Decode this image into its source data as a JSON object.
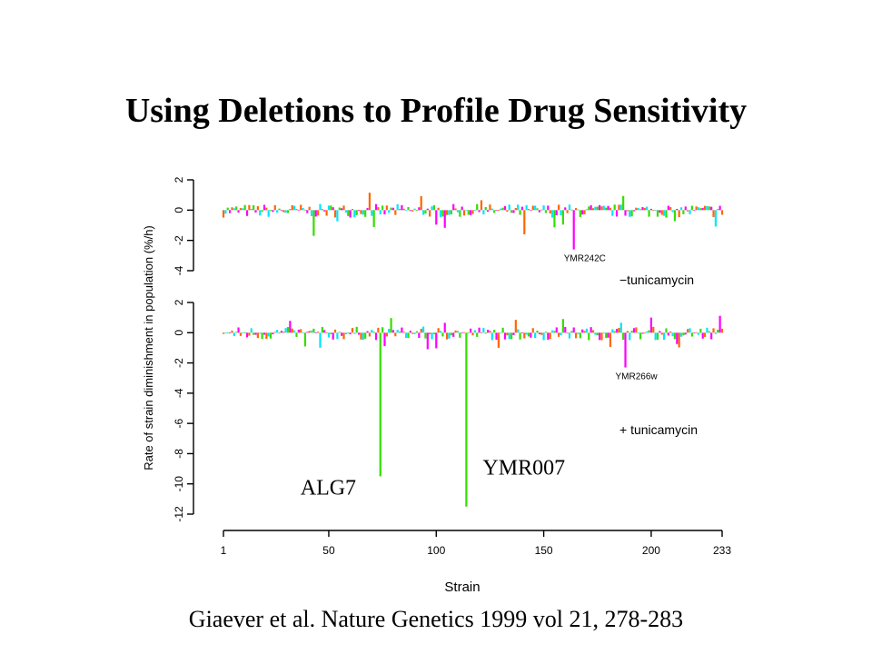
{
  "slide": {
    "title": "Using Deletions to Profile Drug Sensitivity",
    "citation": "Giaever et al. Nature Genetics 1999 vol 21, 278-283"
  },
  "colors": {
    "series_palette": [
      "#ff00ff",
      "#ff6600",
      "#00e5ff",
      "#33dd00"
    ],
    "axis": "#000000",
    "background": "#ffffff"
  },
  "chart_data": {
    "type": "bar",
    "xlabel": "Strain",
    "ylabel": "Rate of strain diminishment in population (%/h)",
    "x_ticks": [
      "1",
      "50",
      "100",
      "150",
      "200",
      "233"
    ],
    "x_range": [
      1,
      233
    ],
    "panels": [
      {
        "name": "-tunicamycin",
        "legend": "−tunicamycin",
        "ylim": [
          -4,
          2
        ],
        "y_ticks": [
          "2",
          "0",
          "-2",
          "-4"
        ],
        "highlights": [
          {
            "strain": 43,
            "value": -1.7
          },
          {
            "strain": 141,
            "value": -1.6
          },
          {
            "strain": 164,
            "value": -2.6,
            "label": "YMR242C"
          }
        ]
      },
      {
        "name": "+tunicamycin",
        "legend": "+ tunicamycin",
        "ylim": [
          -12,
          2
        ],
        "y_ticks": [
          "2",
          "0",
          "-2",
          "-4",
          "-6",
          "-8",
          "-10",
          "-12"
        ],
        "highlights": [
          {
            "strain": 74,
            "value": -9.5,
            "label": "ALG7"
          },
          {
            "strain": 114,
            "value": -11.5,
            "label": "YMR007"
          },
          {
            "strain": 188,
            "value": -2.3,
            "label": "YMR266w"
          }
        ]
      }
    ]
  }
}
